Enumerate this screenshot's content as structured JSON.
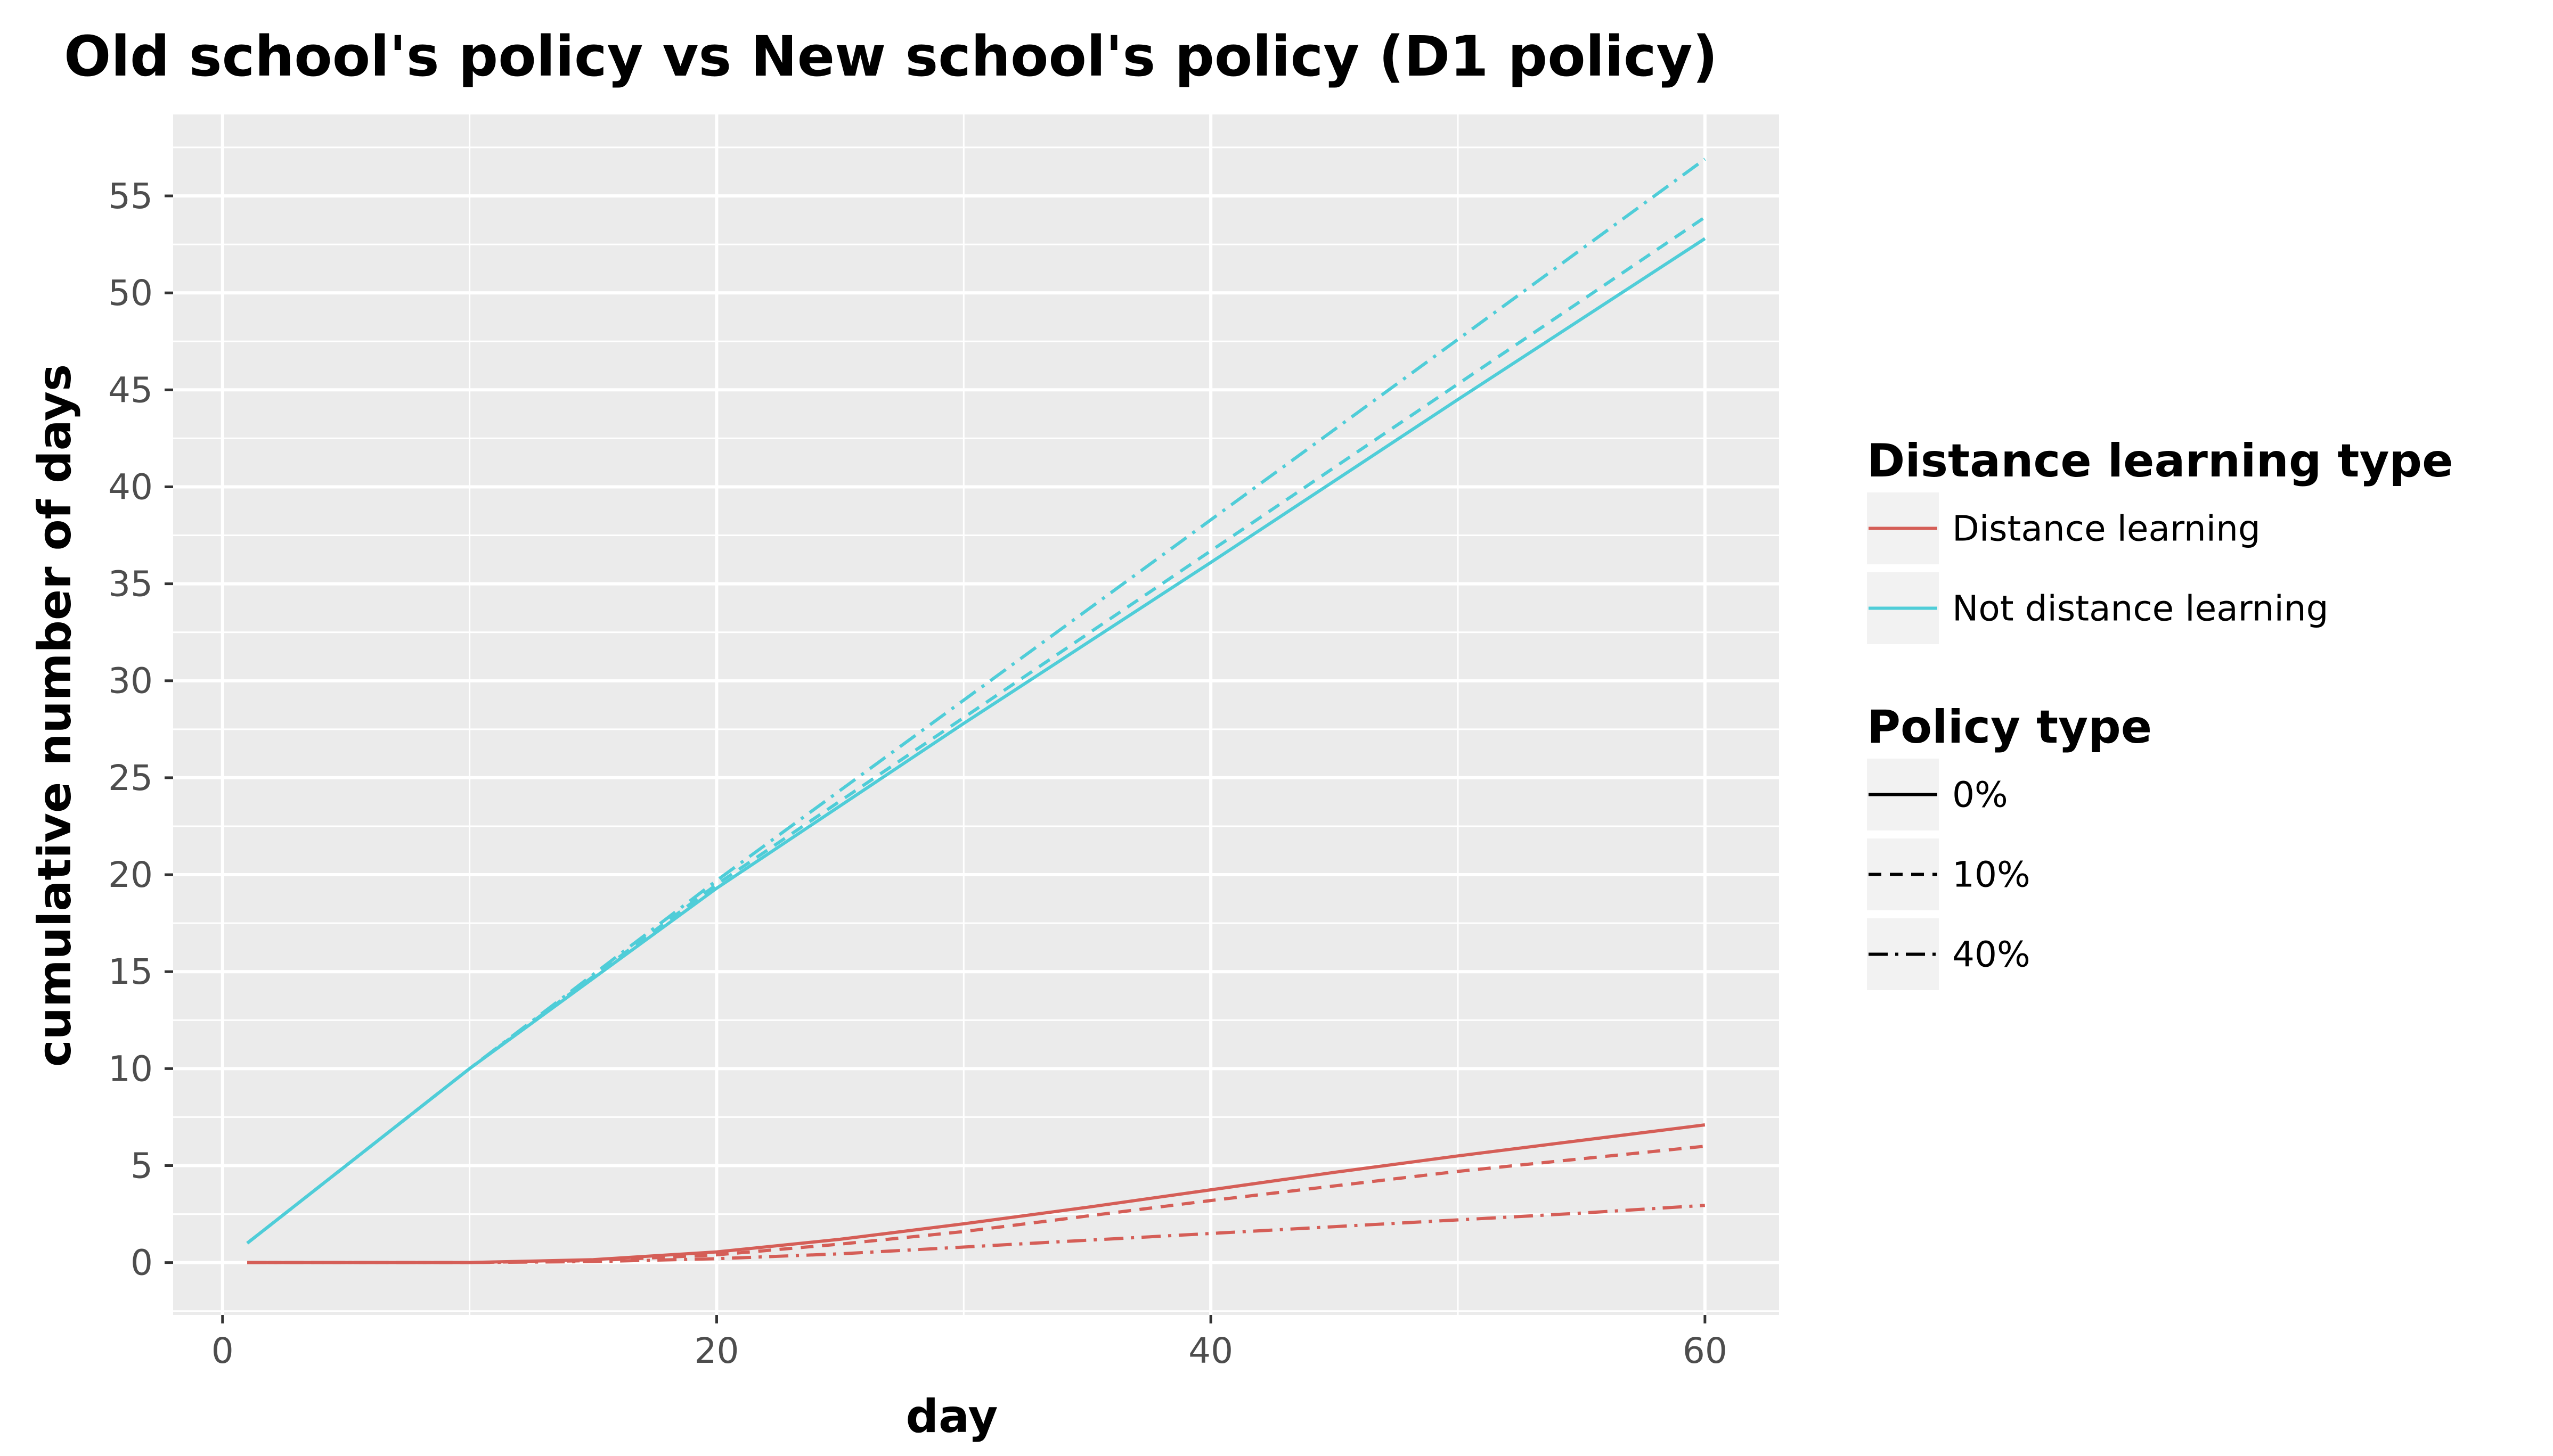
{
  "chart_data": {
    "type": "line",
    "title": "Old school's policy vs New school's policy (D1 policy)",
    "xlabel": "day",
    "ylabel": "cumulative number of days",
    "xlim": [
      -2,
      63
    ],
    "ylim": [
      -2.7,
      59.2
    ],
    "x_ticks": [
      0,
      20,
      40,
      60
    ],
    "x_tick_labels": [
      "0",
      "20",
      "40",
      "60"
    ],
    "y_ticks": [
      0,
      5,
      10,
      15,
      20,
      25,
      30,
      35,
      40,
      45,
      50,
      55
    ],
    "y_tick_labels": [
      "0",
      "5",
      "10",
      "15",
      "20",
      "25",
      "30",
      "35",
      "40",
      "45",
      "50",
      "55"
    ],
    "grid": true,
    "legend_position": "right",
    "legends": [
      {
        "title": "Distance learning type",
        "kind": "color",
        "entries": [
          {
            "label": "Distance learning",
            "color": "#d55e57"
          },
          {
            "label": "Not distance learning",
            "color": "#4fcdd8"
          }
        ]
      },
      {
        "title": "Policy type",
        "kind": "linetype",
        "entries": [
          {
            "label": "0%",
            "dash": "solid"
          },
          {
            "label": "10%",
            "dash": "dashed"
          },
          {
            "label": "40%",
            "dash": "dashdot"
          }
        ]
      }
    ],
    "series": [
      {
        "type": "Not distance learning",
        "policy": "0%",
        "color": "#4fcdd8",
        "dash": "solid",
        "x": [
          1,
          10,
          20,
          30,
          40,
          50,
          60
        ],
        "y": [
          1,
          10,
          19.3,
          27.8,
          36.1,
          44.5,
          52.8
        ]
      },
      {
        "type": "Not distance learning",
        "policy": "10%",
        "color": "#4fcdd8",
        "dash": "dashed",
        "x": [
          1,
          10,
          20,
          30,
          40,
          50,
          60
        ],
        "y": [
          1,
          10,
          19.5,
          28.1,
          36.7,
          45.3,
          53.9
        ]
      },
      {
        "type": "Not distance learning",
        "policy": "40%",
        "color": "#4fcdd8",
        "dash": "dashdot",
        "x": [
          1,
          10,
          20,
          30,
          40,
          50,
          60
        ],
        "y": [
          1,
          10,
          19.7,
          29.0,
          38.3,
          47.6,
          56.9
        ]
      },
      {
        "type": "Distance learning",
        "policy": "0%",
        "color": "#d55e57",
        "dash": "solid",
        "x": [
          1,
          10,
          15,
          20,
          25,
          30,
          35,
          40,
          45,
          50,
          55,
          60
        ],
        "y": [
          0,
          0,
          0.15,
          0.55,
          1.2,
          2.0,
          2.85,
          3.75,
          4.65,
          5.5,
          6.3,
          7.1
        ]
      },
      {
        "type": "Distance learning",
        "policy": "10%",
        "color": "#d55e57",
        "dash": "dashed",
        "x": [
          1,
          10,
          15,
          20,
          25,
          30,
          35,
          40,
          45,
          50,
          55,
          60
        ],
        "y": [
          0,
          0,
          0.1,
          0.4,
          0.95,
          1.6,
          2.4,
          3.2,
          3.95,
          4.7,
          5.35,
          6.0
        ]
      },
      {
        "type": "Distance learning",
        "policy": "40%",
        "color": "#d55e57",
        "dash": "dashdot",
        "x": [
          1,
          10,
          15,
          20,
          25,
          30,
          35,
          40,
          45,
          50,
          55,
          60
        ],
        "y": [
          0,
          0,
          0.05,
          0.2,
          0.45,
          0.8,
          1.15,
          1.5,
          1.85,
          2.2,
          2.55,
          2.95
        ]
      }
    ]
  }
}
